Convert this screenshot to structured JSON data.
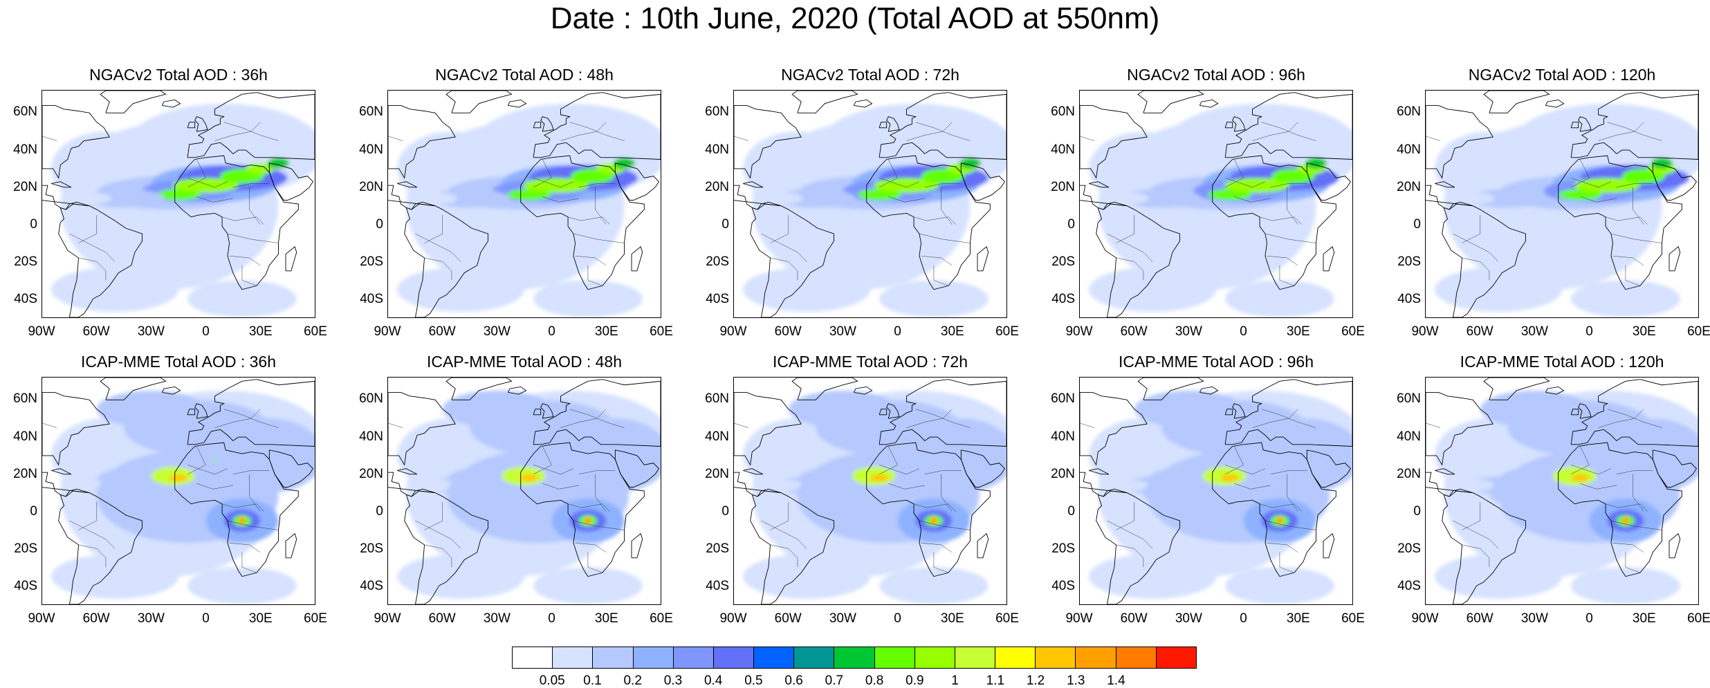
{
  "title": "Date : 10th June, 2020 (Total AOD at 550nm)",
  "panels": [
    {
      "title": "NGACv2 Total AOD : 36h",
      "model": "ngac"
    },
    {
      "title": "NGACv2 Total AOD : 48h",
      "model": "ngac"
    },
    {
      "title": "NGACv2 Total AOD : 72h",
      "model": "ngac"
    },
    {
      "title": "NGACv2 Total AOD : 96h",
      "model": "ngac"
    },
    {
      "title": "NGACv2 Total AOD : 120h",
      "model": "ngac"
    },
    {
      "title": "ICAP-MME Total AOD : 36h",
      "model": "icap"
    },
    {
      "title": "ICAP-MME Total AOD : 48h",
      "model": "icap"
    },
    {
      "title": "ICAP-MME Total AOD : 72h",
      "model": "icap"
    },
    {
      "title": "ICAP-MME Total AOD : 96h",
      "model": "icap"
    },
    {
      "title": "ICAP-MME Total AOD : 120h",
      "model": "icap"
    }
  ],
  "lat_ticks": [
    "60N",
    "40N",
    "20N",
    "0",
    "20S",
    "40S"
  ],
  "lon_ticks": [
    "90W",
    "60W",
    "30W",
    "0",
    "30E",
    "60E"
  ],
  "map_extent": {
    "lon_min": -90,
    "lon_max": 60,
    "lat_min": -50,
    "lat_max": 72
  },
  "colorbar": {
    "labels": [
      "0.05",
      "0.1",
      "0.2",
      "0.3",
      "0.4",
      "0.5",
      "0.6",
      "0.7",
      "0.8",
      "0.9",
      "1",
      "1.1",
      "1.2",
      "1.3",
      "1.4"
    ],
    "colors": [
      "#ffffff",
      "#d6e2ff",
      "#b5c9ff",
      "#8eb2ff",
      "#7f96ff",
      "#6370f8",
      "#0063ff",
      "#009696",
      "#00c633",
      "#63ff00",
      "#96ff00",
      "#c6ff33",
      "#ffff00",
      "#ffc600",
      "#ffa000",
      "#ff7c00",
      "#ff1900"
    ]
  }
}
